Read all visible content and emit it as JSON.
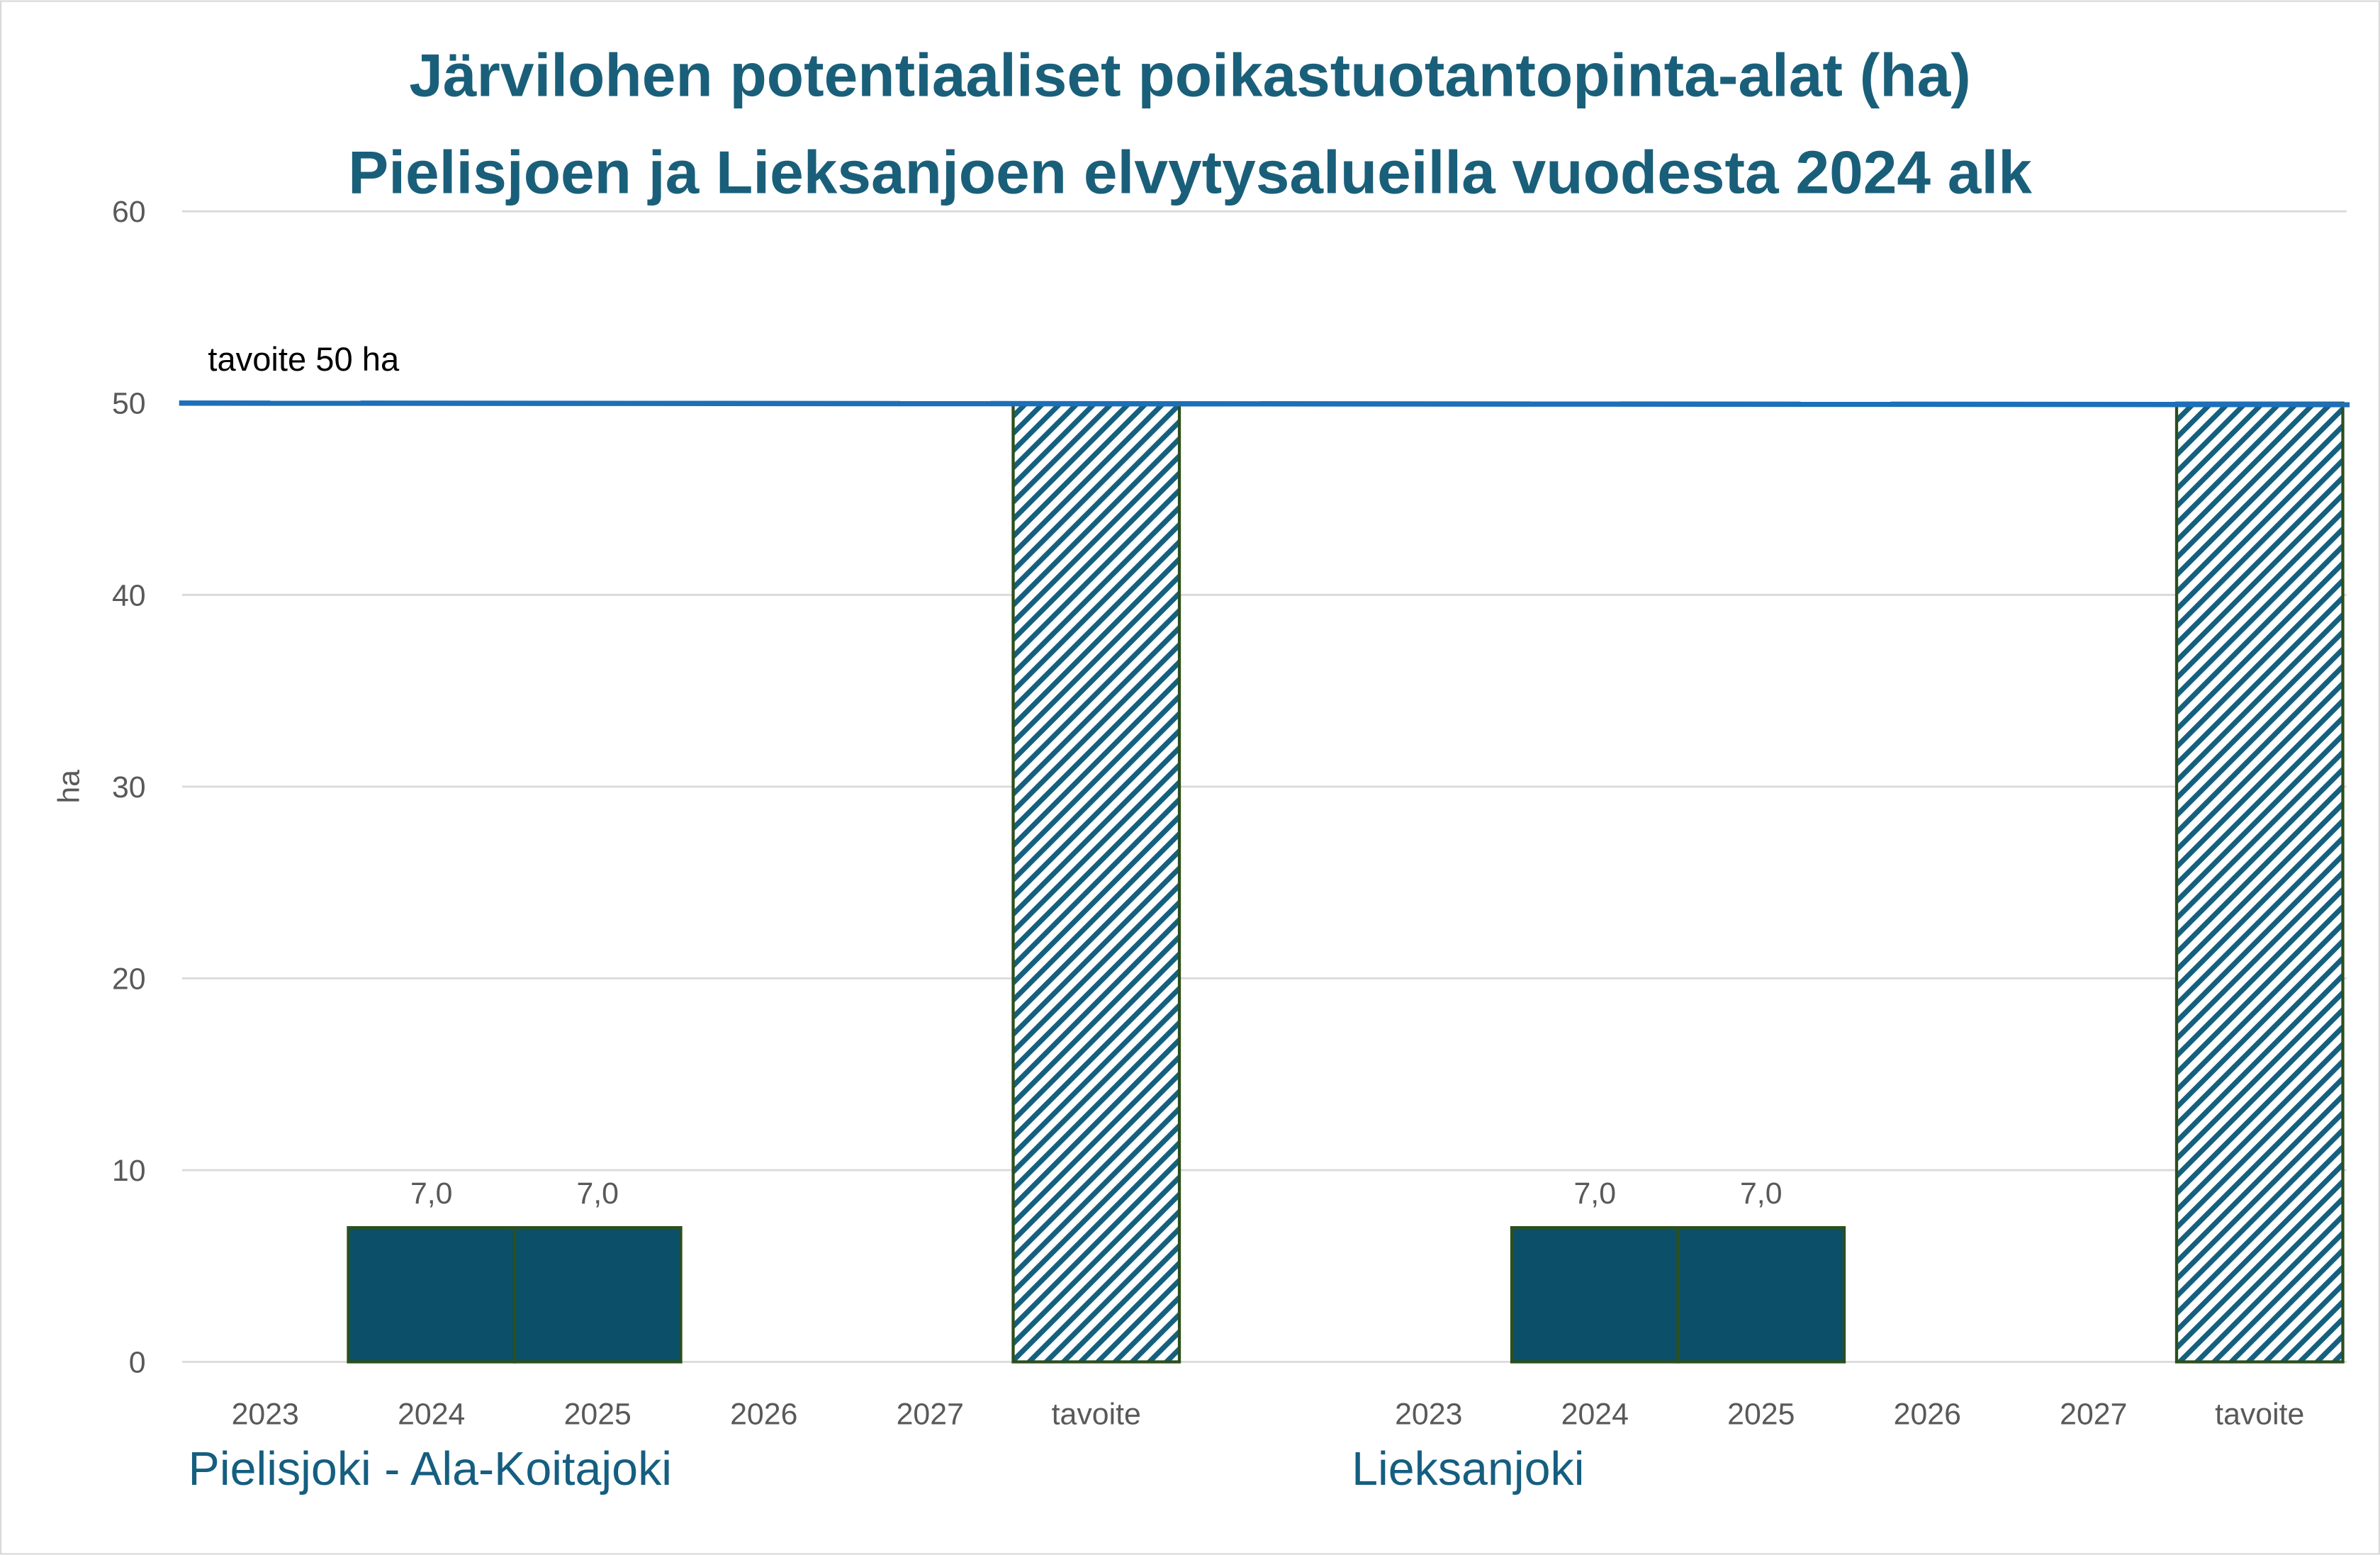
{
  "chart_data": {
    "type": "bar",
    "title": [
      "Järvilohen potentiaaliset poikastuotantopinta-alat (ha)",
      "Pielisjoen ja Lieksanjoen elvytysalueilla vuodesta 2024 alk"
    ],
    "ylabel": "ha",
    "xlabel": "",
    "ylim": [
      0,
      60
    ],
    "yticks": [
      0,
      10,
      20,
      30,
      40,
      50,
      60
    ],
    "grid": true,
    "groups": [
      {
        "name": "Pielisjoki - Ala-Koitajoki",
        "categories": [
          "2023",
          "2024",
          "2025",
          "2026",
          "2027",
          "tavoite"
        ],
        "values": [
          null,
          7.0,
          7.0,
          null,
          null,
          50
        ],
        "data_labels": [
          "",
          "7,0",
          "7,0",
          "",
          "",
          ""
        ]
      },
      {
        "name": "Lieksanjoki",
        "categories": [
          "2023",
          "2024",
          "2025",
          "2026",
          "2027",
          "tavoite"
        ],
        "values": [
          null,
          7.0,
          7.0,
          null,
          null,
          50
        ],
        "data_labels": [
          "",
          "7,0",
          "7,0",
          "",
          "",
          ""
        ]
      }
    ],
    "target_line": {
      "value": 50,
      "label": "tavoite 50 ha"
    },
    "colors": {
      "bar": "#0b5068",
      "bar_edge": "#2c4f1e",
      "hatch": "#15607f",
      "target": "#1c6fb8",
      "grid": "#d9d9d9",
      "title": "#1a5f7a",
      "group_label": "#155e80"
    }
  }
}
